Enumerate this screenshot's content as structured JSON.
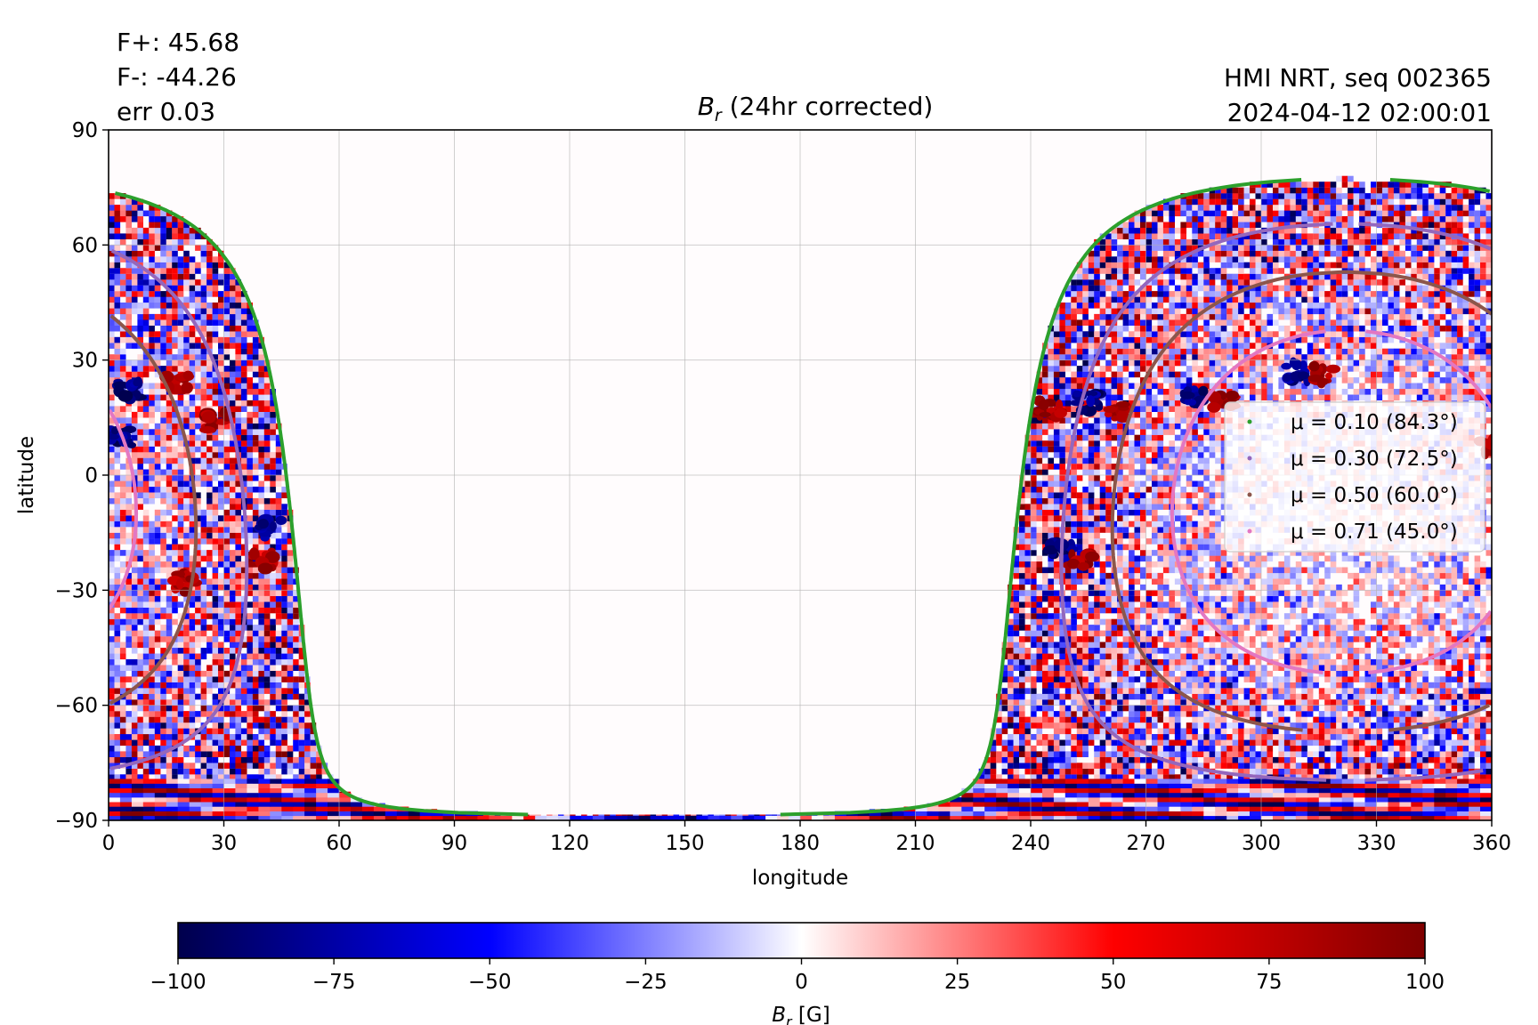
{
  "header": {
    "stats": [
      "F+: 45.68",
      "F-: -44.26",
      "err 0.03"
    ],
    "source": "HMI NRT, seq 002365",
    "timestamp": "2024-04-12 02:00:01"
  },
  "chart_data": {
    "type": "heatmap",
    "title_symbol": "B",
    "title_subscript": "r",
    "title_rest": " (24hr corrected)",
    "xlabel": "longitude",
    "ylabel": "latitude",
    "xlim": [
      0,
      360
    ],
    "ylim": [
      -90,
      90
    ],
    "xticks": [
      0,
      30,
      60,
      90,
      120,
      150,
      180,
      210,
      240,
      270,
      300,
      330,
      360
    ],
    "yticks": [
      90,
      60,
      30,
      0,
      -30,
      -60,
      -90
    ],
    "ytick_labels": [
      "90",
      "60",
      "30",
      "0",
      "−30",
      "−60",
      "−90"
    ],
    "grid": true,
    "disk_center_lon": 322,
    "disk_center_lat": -7,
    "legend": {
      "placement": "right",
      "entries": [
        {
          "label": "μ = 0.10 (84.3°)",
          "mu": 0.1,
          "angle_deg": 84.3,
          "color": "#2ca02c"
        },
        {
          "label": "μ = 0.30 (72.5°)",
          "mu": 0.3,
          "angle_deg": 72.5,
          "color": "#9467bd"
        },
        {
          "label": "μ = 0.50 (60.0°)",
          "mu": 0.5,
          "angle_deg": 60.0,
          "color": "#8c564b"
        },
        {
          "label": "μ = 0.71 (45.0°)",
          "mu": 0.71,
          "angle_deg": 45.0,
          "color": "#e377c2"
        }
      ]
    },
    "active_regions": [
      {
        "lon": 3,
        "lat": 10,
        "sign": -1
      },
      {
        "lon": 5,
        "lat": 22,
        "sign": -1
      },
      {
        "lon": 18,
        "lat": 24,
        "sign": 1
      },
      {
        "lon": 28,
        "lat": 14,
        "sign": 1
      },
      {
        "lon": 20,
        "lat": -28,
        "sign": 1
      },
      {
        "lon": 40,
        "lat": -22,
        "sign": 1
      },
      {
        "lon": 42,
        "lat": -14,
        "sign": -1
      },
      {
        "lon": 245,
        "lat": 17,
        "sign": 1
      },
      {
        "lon": 255,
        "lat": 19,
        "sign": -1
      },
      {
        "lon": 263,
        "lat": 17,
        "sign": 1
      },
      {
        "lon": 283,
        "lat": 20,
        "sign": -1
      },
      {
        "lon": 290,
        "lat": 19,
        "sign": 1
      },
      {
        "lon": 309,
        "lat": 27,
        "sign": -1
      },
      {
        "lon": 316,
        "lat": 26,
        "sign": 1
      },
      {
        "lon": 248,
        "lat": -20,
        "sign": -1
      },
      {
        "lon": 253,
        "lat": -22,
        "sign": 1
      },
      {
        "lon": 360,
        "lat": 8,
        "sign": 1
      }
    ],
    "colorbar": {
      "min": -100,
      "max": 100,
      "ticks": [
        -100,
        -75,
        -50,
        -25,
        0,
        25,
        50,
        75,
        100
      ],
      "tick_labels": [
        "−100",
        "−75",
        "−50",
        "−25",
        "0",
        "25",
        "50",
        "75",
        "100"
      ],
      "label_symbol": "B",
      "label_subscript": "r",
      "label_rest": " [G]",
      "colormap": "seismic"
    }
  }
}
